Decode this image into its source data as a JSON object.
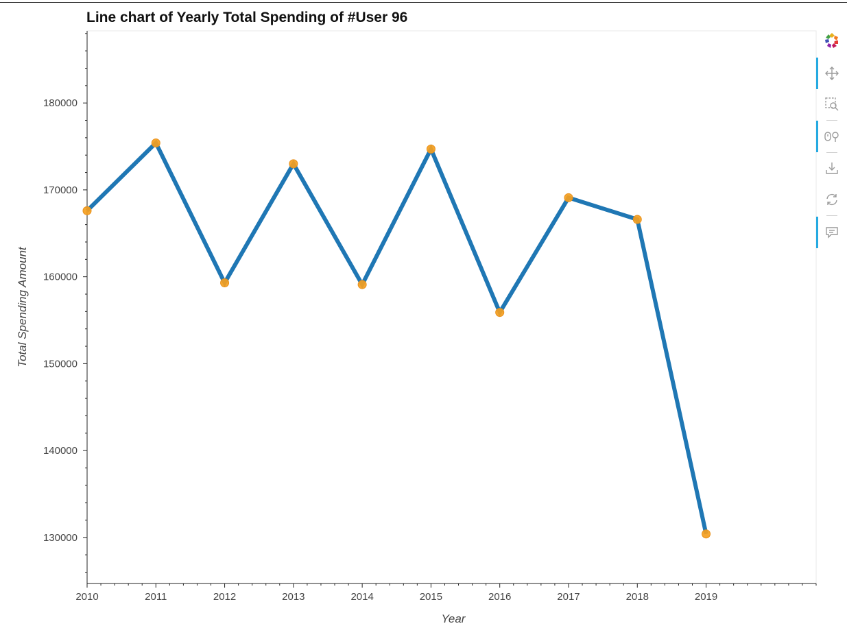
{
  "chart_data": {
    "type": "line",
    "title": "Line chart of Yearly Total Spending of #User 96",
    "xlabel": "Year",
    "ylabel": "Total Spending Amount",
    "x": [
      2010,
      2011,
      2012,
      2013,
      2014,
      2015,
      2016,
      2017,
      2018,
      2019
    ],
    "series": [
      {
        "values": [
          167600,
          175400,
          159300,
          173000,
          159100,
          174700,
          155900,
          169100,
          166600,
          130400
        ]
      }
    ],
    "xlim": [
      2010,
      2020.6
    ],
    "ylim": [
      124700,
      188300
    ],
    "x_ticks": [
      2010,
      2011,
      2012,
      2013,
      2014,
      2015,
      2016,
      2017,
      2018,
      2019
    ],
    "y_ticks": [
      130000,
      140000,
      150000,
      160000,
      170000,
      180000
    ],
    "grid": false,
    "colors": {
      "line": "#1f77b4",
      "marker": "#f5a020"
    }
  },
  "toolbar": {
    "items": [
      {
        "name": "bokeh-logo-icon",
        "active": false
      },
      {
        "name": "pan-icon",
        "active": true
      },
      {
        "name": "box-zoom-icon",
        "active": false
      },
      {
        "name": "wheel-zoom-icon",
        "active": true
      },
      {
        "name": "save-icon",
        "active": false
      },
      {
        "name": "reset-icon",
        "active": false
      },
      {
        "name": "hover-icon",
        "active": true
      }
    ]
  }
}
